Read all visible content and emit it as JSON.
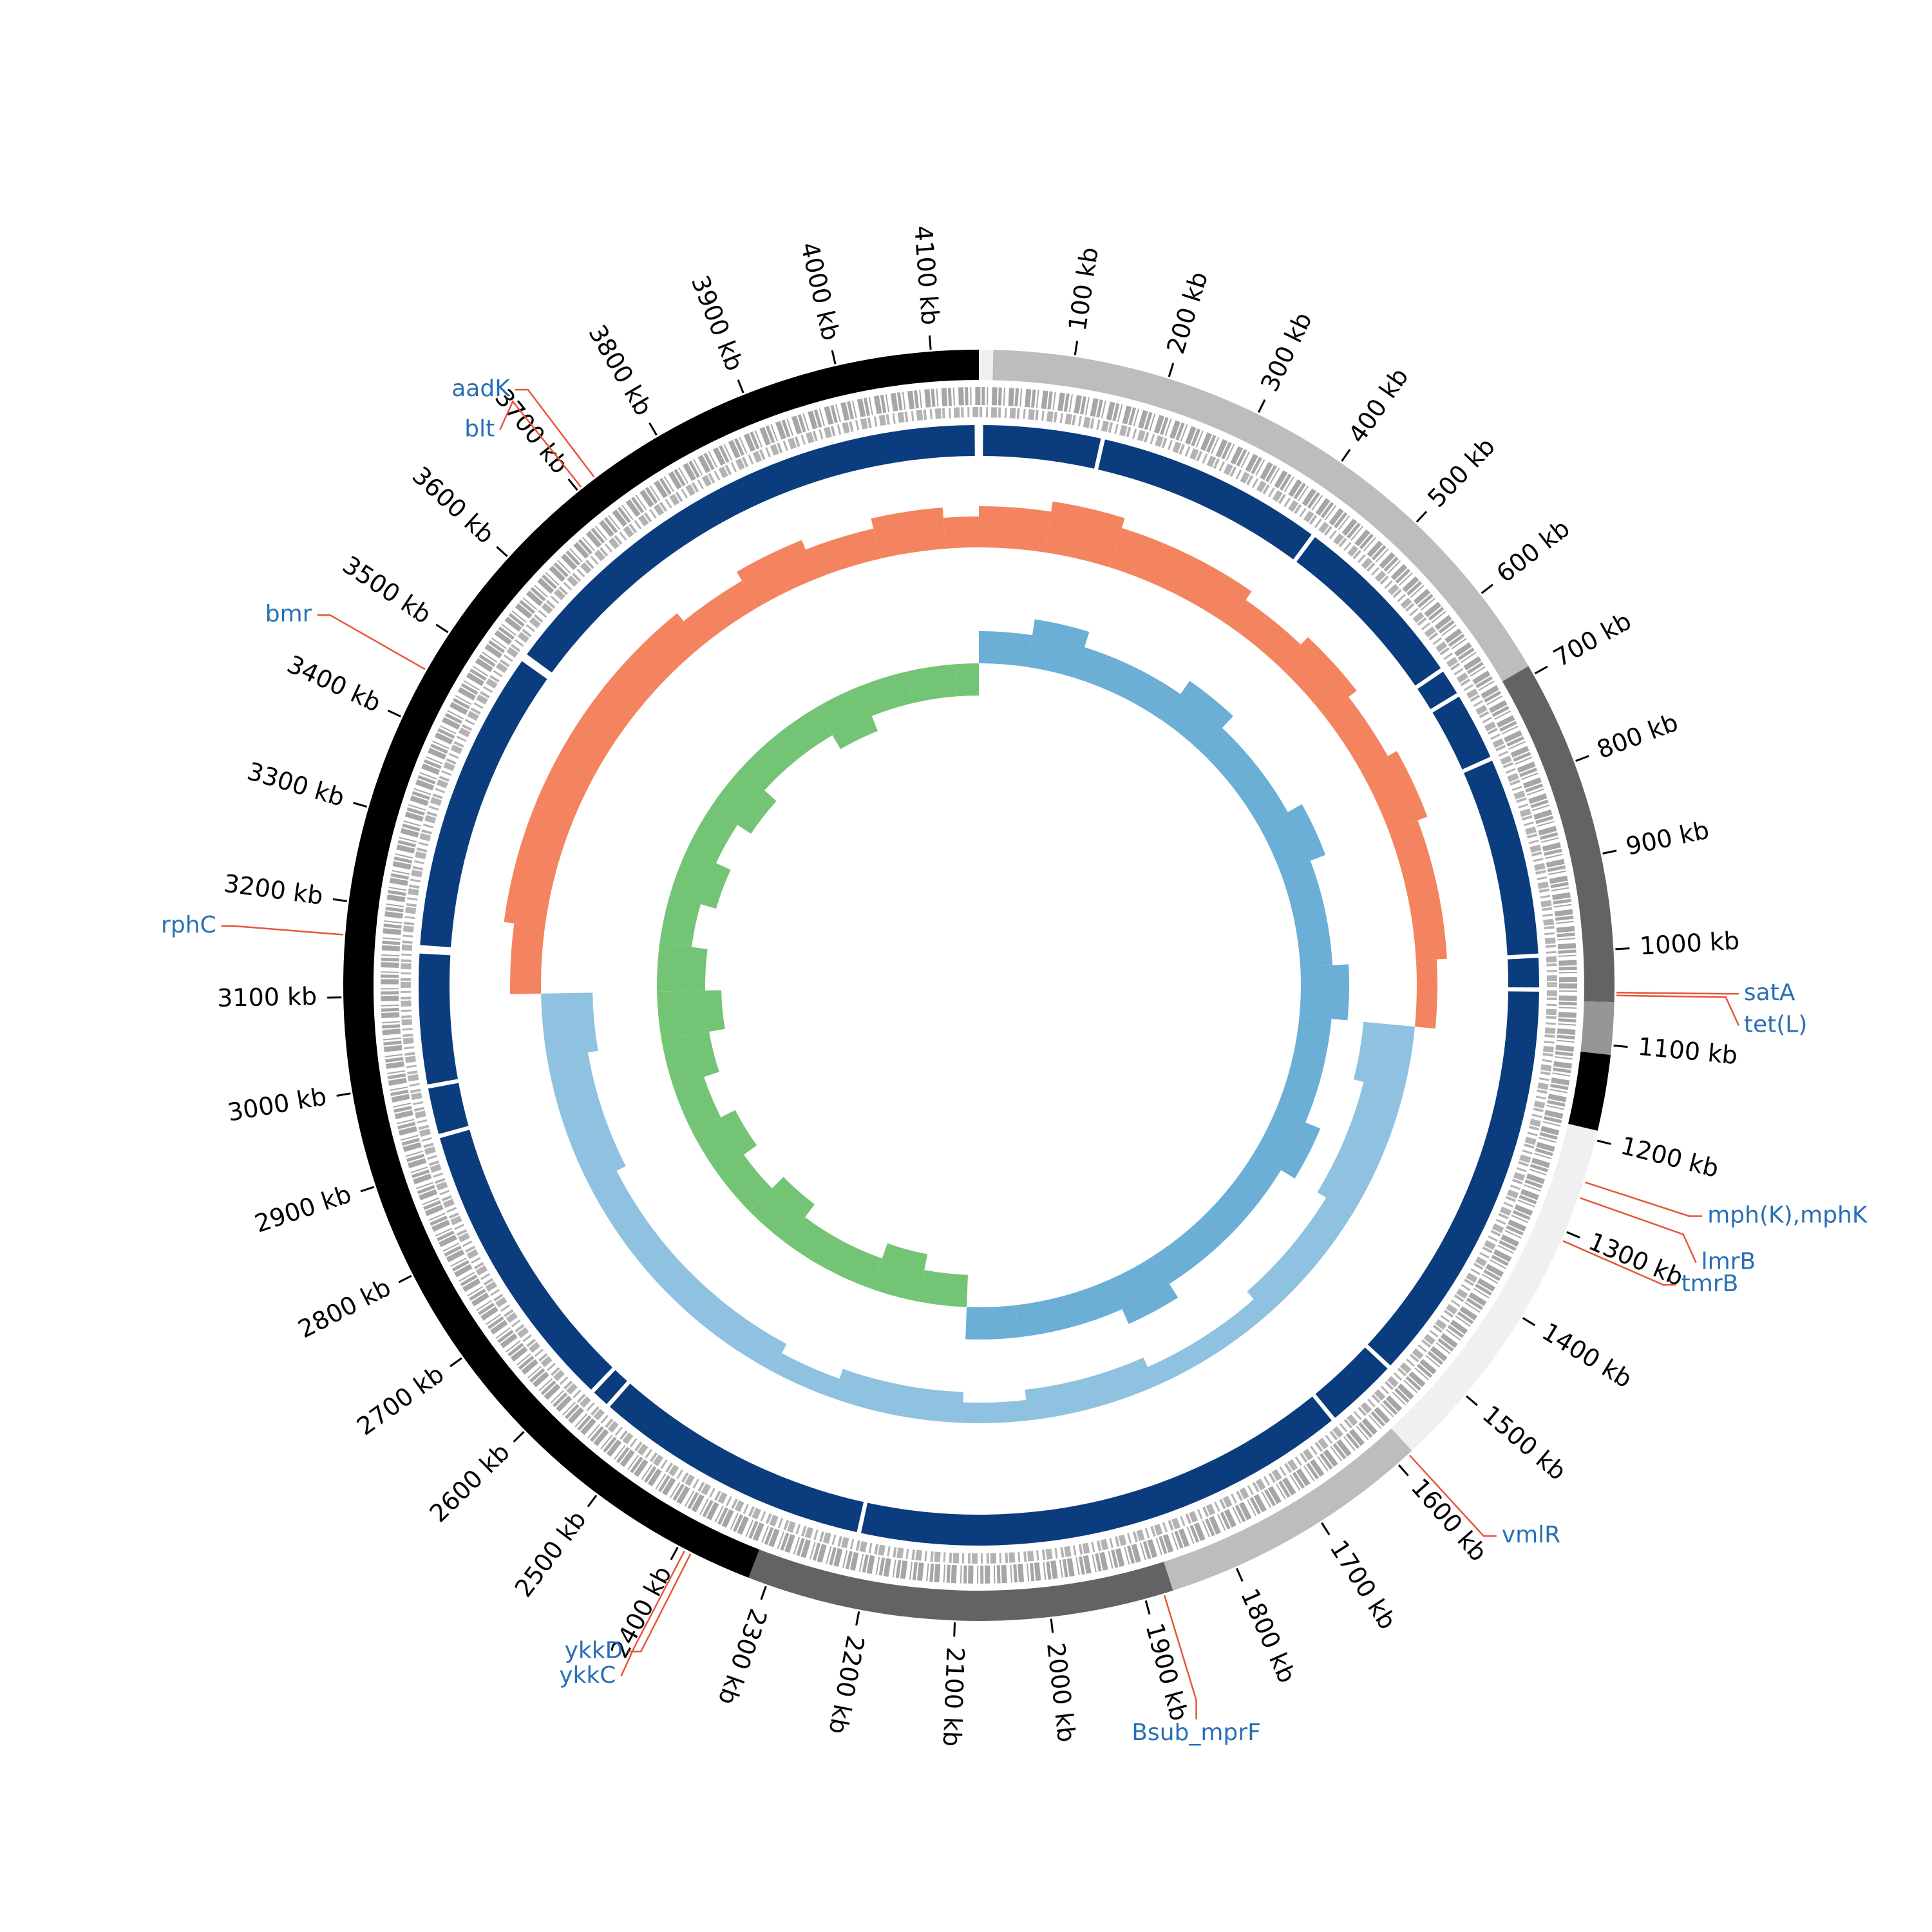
{
  "chart_data": {
    "type": "circos",
    "xlim": [
      0,
      4150
    ],
    "xticks": [
      {
        "value": 100,
        "label": "100 kb"
      },
      {
        "value": 200,
        "label": "200 kb"
      },
      {
        "value": 300,
        "label": "300 kb"
      },
      {
        "value": 400,
        "label": "400 kb"
      },
      {
        "value": 500,
        "label": "500 kb"
      },
      {
        "value": 600,
        "label": "600 kb"
      },
      {
        "value": 700,
        "label": "700 kb"
      },
      {
        "value": 800,
        "label": "800 kb"
      },
      {
        "value": 900,
        "label": "900 kb"
      },
      {
        "value": 1000,
        "label": "1000 kb"
      },
      {
        "value": 1100,
        "label": "1100 kb"
      },
      {
        "value": 1200,
        "label": "1200 kb"
      },
      {
        "value": 1300,
        "label": "1300 kb"
      },
      {
        "value": 1400,
        "label": "1400 kb"
      },
      {
        "value": 1500,
        "label": "1500 kb"
      },
      {
        "value": 1600,
        "label": "1600 kb"
      },
      {
        "value": 1700,
        "label": "1700 kb"
      },
      {
        "value": 1800,
        "label": "1800 kb"
      },
      {
        "value": 1900,
        "label": "1900 kb"
      },
      {
        "value": 2000,
        "label": "2000 kb"
      },
      {
        "value": 2100,
        "label": "2100 kb"
      },
      {
        "value": 2200,
        "label": "2200 kb"
      },
      {
        "value": 2300,
        "label": "2300 kb"
      },
      {
        "value": 2400,
        "label": "2400 kb"
      },
      {
        "value": 2500,
        "label": "2500 kb"
      },
      {
        "value": 2600,
        "label": "2600 kb"
      },
      {
        "value": 2700,
        "label": "2700 kb"
      },
      {
        "value": 2800,
        "label": "2800 kb"
      },
      {
        "value": 2900,
        "label": "2900 kb"
      },
      {
        "value": 3000,
        "label": "3000 kb"
      },
      {
        "value": 3100,
        "label": "3100 kb"
      },
      {
        "value": 3200,
        "label": "3200 kb"
      },
      {
        "value": 3300,
        "label": "3300 kb"
      },
      {
        "value": 3400,
        "label": "3400 kb"
      },
      {
        "value": 3500,
        "label": "3500 kb"
      },
      {
        "value": 3600,
        "label": "3600 kb"
      },
      {
        "value": 3700,
        "label": "3700 kb"
      },
      {
        "value": 3800,
        "label": "3800 kb"
      },
      {
        "value": 3900,
        "label": "3900 kb"
      },
      {
        "value": 4000,
        "label": "4000 kb"
      },
      {
        "value": 4100,
        "label": "4100 kb"
      }
    ],
    "segments": [
      {
        "start": 0,
        "end": 15,
        "color": "#f0f0f0"
      },
      {
        "start": 15,
        "end": 690,
        "color": "#bdbdbd"
      },
      {
        "start": 690,
        "end": 1055,
        "color": "#636363"
      },
      {
        "start": 1055,
        "end": 1110,
        "color": "#969696"
      },
      {
        "start": 1110,
        "end": 1190,
        "color": "#000000"
      },
      {
        "start": 1190,
        "end": 1580,
        "color": "#f0f0f0"
      },
      {
        "start": 1580,
        "end": 1870,
        "color": "#bdbdbd"
      },
      {
        "start": 1870,
        "end": 2320,
        "color": "#636363"
      },
      {
        "start": 2320,
        "end": 4150,
        "color": "#000000"
      }
    ],
    "contigs": {
      "color": "#0b3d7e",
      "ranges": [
        [
          5,
          145
        ],
        [
          150,
          420
        ],
        [
          425,
          640
        ],
        [
          645,
          675
        ],
        [
          680,
          760
        ],
        [
          765,
          1000
        ],
        [
          1005,
          1040
        ],
        [
          1045,
          1530
        ],
        [
          1535,
          1620
        ],
        [
          1625,
          2215
        ],
        [
          2220,
          2550
        ],
        [
          2555,
          2575
        ],
        [
          2580,
          2930
        ],
        [
          2935,
          2990
        ],
        [
          2995,
          3150
        ],
        [
          3160,
          3520
        ],
        [
          3530,
          4145
        ]
      ]
    },
    "x": [
      0,
      100,
      200,
      300,
      400,
      500,
      600,
      700,
      800,
      900,
      1000,
      1100,
      1200,
      1300,
      1400,
      1500,
      1600,
      1700,
      1800,
      1900,
      2000,
      2100,
      2200,
      2300,
      2400,
      2500,
      2600,
      2700,
      2800,
      2900,
      3000,
      3100,
      3200,
      3300,
      3400,
      3500,
      3600,
      3700,
      3800,
      3900,
      4000,
      4100
    ],
    "gc_content": {
      "colors": [
        "#f4845f",
        "#8fc1e0"
      ],
      "values": [
        4,
        5,
        4,
        4,
        3,
        4,
        3,
        4,
        3,
        3,
        2,
        -5,
        -4,
        -4,
        -3,
        -3,
        -2,
        -2,
        -3,
        -3,
        -2,
        -3,
        -3,
        -2,
        -3,
        -3,
        -3,
        -3,
        -4,
        -4,
        -5,
        3,
        4,
        4,
        4,
        4,
        4,
        3,
        4,
        3,
        4,
        3
      ]
    },
    "gc_skew": {
      "colors": [
        "#6baed6",
        "#74c476"
      ],
      "values": [
        2,
        3,
        2,
        2,
        3,
        2,
        2,
        3,
        2,
        2,
        3,
        2,
        2,
        3,
        2,
        2,
        2,
        3,
        2,
        2,
        2,
        -2,
        -3,
        -2,
        -2,
        -3,
        -2,
        -3,
        -2,
        -3,
        -4,
        -3,
        -2,
        -3,
        -2,
        -3,
        -2,
        -2,
        -3,
        -2,
        -2,
        -2
      ]
    },
    "annotations": [
      {
        "label": "aadK",
        "position": 3722
      },
      {
        "label": "blt",
        "position": 3705
      },
      {
        "label": "bmr",
        "position": 3455
      },
      {
        "label": "rphC",
        "position": 3165
      },
      {
        "label": "satA",
        "position": 1045
      },
      {
        "label": "tet(L)",
        "position": 1048
      },
      {
        "label": "mph(K),mphK",
        "position": 1245
      },
      {
        "label": "lmrB",
        "position": 1262
      },
      {
        "label": "tmrB",
        "position": 1310
      },
      {
        "label": "vmlR",
        "position": 1585
      },
      {
        "label": "Bsub_mprF",
        "position": 1880
      },
      {
        "label": "ykkD",
        "position": 2385
      },
      {
        "label": "ykkC",
        "position": 2392
      }
    ],
    "annotation_colors": {
      "text": "#2a6fb5",
      "line": "#e8543a"
    }
  }
}
